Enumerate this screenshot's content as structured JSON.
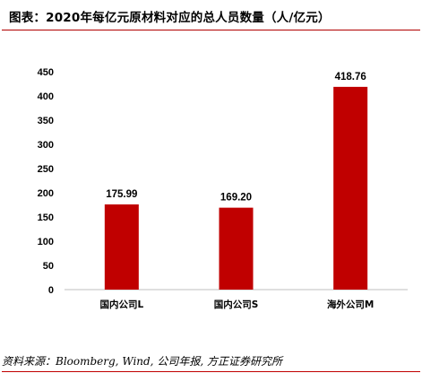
{
  "chart_data": {
    "type": "bar",
    "title": "图表：2020年每亿元原材料对应的总人员数量（人/亿元）",
    "categories": [
      "国内公司L",
      "国内公司S",
      "海外公司M"
    ],
    "values": [
      175.99,
      169.2,
      418.76
    ],
    "value_labels": [
      "175.99",
      "169.20",
      "418.76"
    ],
    "xlabel": "",
    "ylabel": "",
    "ylim": [
      0,
      450
    ],
    "yticks": [
      0,
      50,
      100,
      150,
      200,
      250,
      300,
      350,
      400,
      450
    ],
    "grid": false,
    "legend": "none",
    "bar_color": "#c00000"
  },
  "source": "资料来源：Bloomberg, Wind, 公司年报, 方正证券研究所",
  "colors": {
    "accent": "#c00000",
    "rule": "#b00000"
  }
}
